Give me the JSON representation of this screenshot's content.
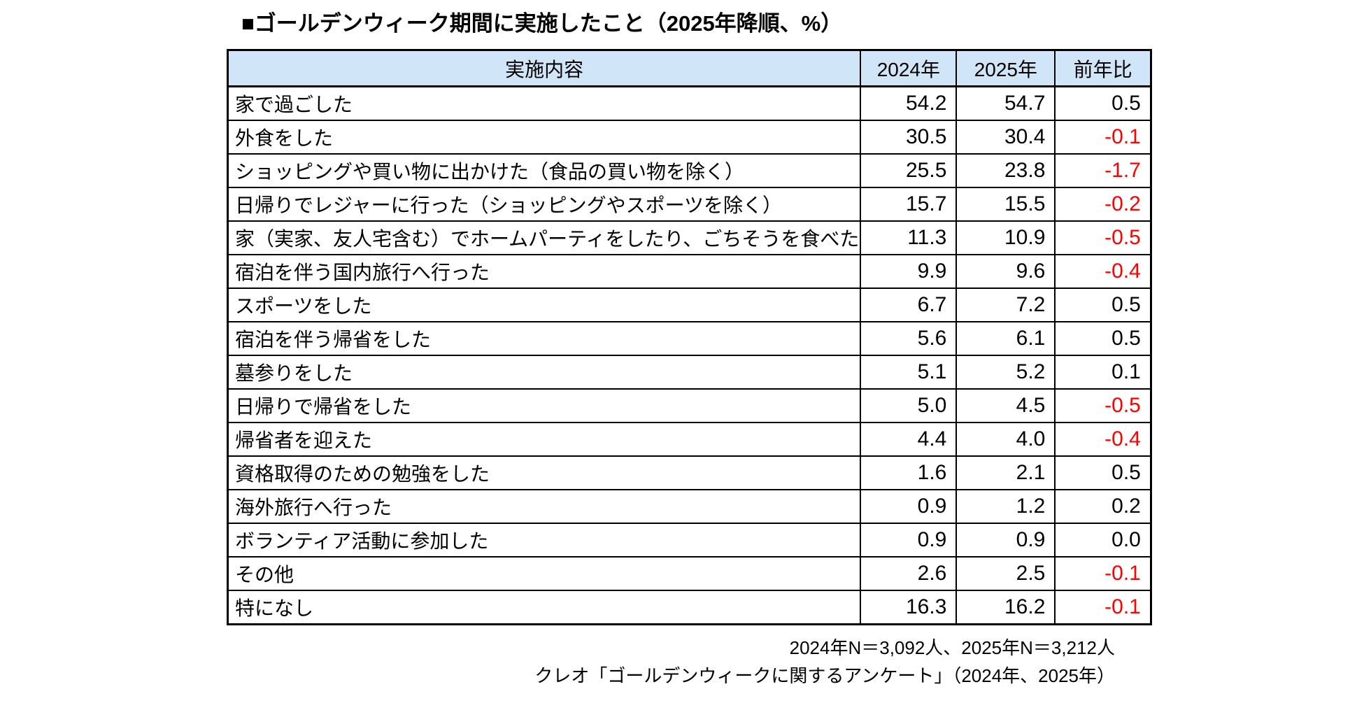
{
  "title": "■ゴールデンウィーク期間に実施したこと（2025年降順、%）",
  "table": {
    "columns": [
      "実施内容",
      "2024年",
      "2025年",
      "前年比"
    ],
    "rows": [
      {
        "label": "家で過ごした",
        "y2024": "54.2",
        "y2025": "54.7",
        "diff": "0.5"
      },
      {
        "label": "外食をした",
        "y2024": "30.5",
        "y2025": "30.4",
        "diff": "-0.1"
      },
      {
        "label": "ショッピングや買い物に出かけた（食品の買い物を除く）",
        "y2024": "25.5",
        "y2025": "23.8",
        "diff": "-1.7"
      },
      {
        "label": "日帰りでレジャーに行った（ショッピングやスポーツを除く）",
        "y2024": "15.7",
        "y2025": "15.5",
        "diff": "-0.2"
      },
      {
        "label": "家（実家、友人宅含む）でホームパーティをしたり、ごちそうを食べた",
        "y2024": "11.3",
        "y2025": "10.9",
        "diff": "-0.5"
      },
      {
        "label": "宿泊を伴う国内旅行へ行った",
        "y2024": "9.9",
        "y2025": "9.6",
        "diff": "-0.4"
      },
      {
        "label": "スポーツをした",
        "y2024": "6.7",
        "y2025": "7.2",
        "diff": "0.5"
      },
      {
        "label": "宿泊を伴う帰省をした",
        "y2024": "5.6",
        "y2025": "6.1",
        "diff": "0.5"
      },
      {
        "label": "墓参りをした",
        "y2024": "5.1",
        "y2025": "5.2",
        "diff": "0.1"
      },
      {
        "label": "日帰りで帰省をした",
        "y2024": "5.0",
        "y2025": "4.5",
        "diff": "-0.5"
      },
      {
        "label": "帰省者を迎えた",
        "y2024": "4.4",
        "y2025": "4.0",
        "diff": "-0.4"
      },
      {
        "label": "資格取得のための勉強をした",
        "y2024": "1.6",
        "y2025": "2.1",
        "diff": "0.5"
      },
      {
        "label": "海外旅行へ行った",
        "y2024": "0.9",
        "y2025": "1.2",
        "diff": "0.2"
      },
      {
        "label": "ボランティア活動に参加した",
        "y2024": "0.9",
        "y2025": "0.9",
        "diff": "0.0"
      },
      {
        "label": "その他",
        "y2024": "2.6",
        "y2025": "2.5",
        "diff": "-0.1"
      },
      {
        "label": "特になし",
        "y2024": "16.3",
        "y2025": "16.2",
        "diff": "-0.1"
      }
    ]
  },
  "footer": {
    "line1": "2024年N＝3,092人、2025年N＝3,212人",
    "line2": "クレオ「ゴールデンウィークに関するアンケート」（2024年、2025年）"
  },
  "colors": {
    "header_bg": "#D1E5F8",
    "negative_text": "#FF0000",
    "border": "#000000"
  },
  "chart_data": {
    "type": "table",
    "title": "■ゴールデンウィーク期間に実施したこと（2025年降順、%）",
    "unit": "%",
    "categories": [
      "家で過ごした",
      "外食をした",
      "ショッピングや買い物に出かけた（食品の買い物を除く）",
      "日帰りでレジャーに行った（ショッピングやスポーツを除く）",
      "家（実家、友人宅含む）でホームパーティをしたり、ごちそうを食べた",
      "宿泊を伴う国内旅行へ行った",
      "スポーツをした",
      "宿泊を伴う帰省をした",
      "墓参りをした",
      "日帰りで帰省をした",
      "帰省者を迎えた",
      "資格取得のための勉強をした",
      "海外旅行へ行った",
      "ボランティア活動に参加した",
      "その他",
      "特になし"
    ],
    "series": [
      {
        "name": "2024年",
        "values": [
          54.2,
          30.5,
          25.5,
          15.7,
          11.3,
          9.9,
          6.7,
          5.6,
          5.1,
          5.0,
          4.4,
          1.6,
          0.9,
          0.9,
          2.6,
          16.3
        ]
      },
      {
        "name": "2025年",
        "values": [
          54.7,
          30.4,
          23.8,
          15.5,
          10.9,
          9.6,
          7.2,
          6.1,
          5.2,
          4.5,
          4.0,
          2.1,
          1.2,
          0.9,
          2.5,
          16.2
        ]
      },
      {
        "name": "前年比",
        "values": [
          0.5,
          -0.1,
          -1.7,
          -0.2,
          -0.5,
          -0.4,
          0.5,
          0.5,
          0.1,
          -0.5,
          -0.4,
          0.5,
          0.2,
          0.0,
          -0.1,
          -0.1
        ]
      }
    ],
    "notes": [
      "2024年N＝3,092人、2025年N＝3,212人",
      "クレオ「ゴールデンウィークに関するアンケート」（2024年、2025年）"
    ]
  }
}
